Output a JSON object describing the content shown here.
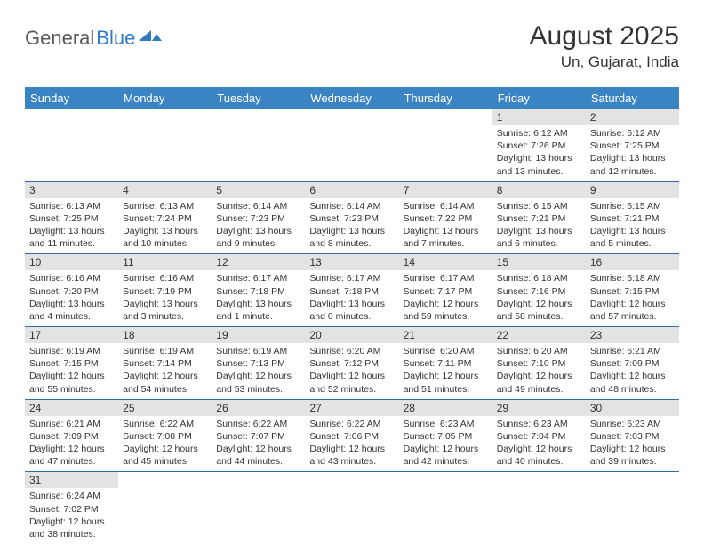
{
  "logo": {
    "text1": "General",
    "text2": "Blue",
    "color1": "#555a5f",
    "color2": "#2f7ac0"
  },
  "title": "August 2025",
  "location": "Un, Gujarat, India",
  "colors": {
    "header_bg": "#3b84c4",
    "header_text": "#ffffff",
    "daynum_bg": "#e3e3e3",
    "border": "#2f6aa8",
    "text": "#333333",
    "background": "#ffffff"
  },
  "weekdays": [
    "Sunday",
    "Monday",
    "Tuesday",
    "Wednesday",
    "Thursday",
    "Friday",
    "Saturday"
  ],
  "weeks": [
    [
      {
        "day": "",
        "lines": []
      },
      {
        "day": "",
        "lines": []
      },
      {
        "day": "",
        "lines": []
      },
      {
        "day": "",
        "lines": []
      },
      {
        "day": "",
        "lines": []
      },
      {
        "day": "1",
        "lines": [
          "Sunrise: 6:12 AM",
          "Sunset: 7:26 PM",
          "Daylight: 13 hours and 13 minutes."
        ]
      },
      {
        "day": "2",
        "lines": [
          "Sunrise: 6:12 AM",
          "Sunset: 7:25 PM",
          "Daylight: 13 hours and 12 minutes."
        ]
      }
    ],
    [
      {
        "day": "3",
        "lines": [
          "Sunrise: 6:13 AM",
          "Sunset: 7:25 PM",
          "Daylight: 13 hours and 11 minutes."
        ]
      },
      {
        "day": "4",
        "lines": [
          "Sunrise: 6:13 AM",
          "Sunset: 7:24 PM",
          "Daylight: 13 hours and 10 minutes."
        ]
      },
      {
        "day": "5",
        "lines": [
          "Sunrise: 6:14 AM",
          "Sunset: 7:23 PM",
          "Daylight: 13 hours and 9 minutes."
        ]
      },
      {
        "day": "6",
        "lines": [
          "Sunrise: 6:14 AM",
          "Sunset: 7:23 PM",
          "Daylight: 13 hours and 8 minutes."
        ]
      },
      {
        "day": "7",
        "lines": [
          "Sunrise: 6:14 AM",
          "Sunset: 7:22 PM",
          "Daylight: 13 hours and 7 minutes."
        ]
      },
      {
        "day": "8",
        "lines": [
          "Sunrise: 6:15 AM",
          "Sunset: 7:21 PM",
          "Daylight: 13 hours and 6 minutes."
        ]
      },
      {
        "day": "9",
        "lines": [
          "Sunrise: 6:15 AM",
          "Sunset: 7:21 PM",
          "Daylight: 13 hours and 5 minutes."
        ]
      }
    ],
    [
      {
        "day": "10",
        "lines": [
          "Sunrise: 6:16 AM",
          "Sunset: 7:20 PM",
          "Daylight: 13 hours and 4 minutes."
        ]
      },
      {
        "day": "11",
        "lines": [
          "Sunrise: 6:16 AM",
          "Sunset: 7:19 PM",
          "Daylight: 13 hours and 3 minutes."
        ]
      },
      {
        "day": "12",
        "lines": [
          "Sunrise: 6:17 AM",
          "Sunset: 7:18 PM",
          "Daylight: 13 hours and 1 minute."
        ]
      },
      {
        "day": "13",
        "lines": [
          "Sunrise: 6:17 AM",
          "Sunset: 7:18 PM",
          "Daylight: 13 hours and 0 minutes."
        ]
      },
      {
        "day": "14",
        "lines": [
          "Sunrise: 6:17 AM",
          "Sunset: 7:17 PM",
          "Daylight: 12 hours and 59 minutes."
        ]
      },
      {
        "day": "15",
        "lines": [
          "Sunrise: 6:18 AM",
          "Sunset: 7:16 PM",
          "Daylight: 12 hours and 58 minutes."
        ]
      },
      {
        "day": "16",
        "lines": [
          "Sunrise: 6:18 AM",
          "Sunset: 7:15 PM",
          "Daylight: 12 hours and 57 minutes."
        ]
      }
    ],
    [
      {
        "day": "17",
        "lines": [
          "Sunrise: 6:19 AM",
          "Sunset: 7:15 PM",
          "Daylight: 12 hours and 55 minutes."
        ]
      },
      {
        "day": "18",
        "lines": [
          "Sunrise: 6:19 AM",
          "Sunset: 7:14 PM",
          "Daylight: 12 hours and 54 minutes."
        ]
      },
      {
        "day": "19",
        "lines": [
          "Sunrise: 6:19 AM",
          "Sunset: 7:13 PM",
          "Daylight: 12 hours and 53 minutes."
        ]
      },
      {
        "day": "20",
        "lines": [
          "Sunrise: 6:20 AM",
          "Sunset: 7:12 PM",
          "Daylight: 12 hours and 52 minutes."
        ]
      },
      {
        "day": "21",
        "lines": [
          "Sunrise: 6:20 AM",
          "Sunset: 7:11 PM",
          "Daylight: 12 hours and 51 minutes."
        ]
      },
      {
        "day": "22",
        "lines": [
          "Sunrise: 6:20 AM",
          "Sunset: 7:10 PM",
          "Daylight: 12 hours and 49 minutes."
        ]
      },
      {
        "day": "23",
        "lines": [
          "Sunrise: 6:21 AM",
          "Sunset: 7:09 PM",
          "Daylight: 12 hours and 48 minutes."
        ]
      }
    ],
    [
      {
        "day": "24",
        "lines": [
          "Sunrise: 6:21 AM",
          "Sunset: 7:09 PM",
          "Daylight: 12 hours and 47 minutes."
        ]
      },
      {
        "day": "25",
        "lines": [
          "Sunrise: 6:22 AM",
          "Sunset: 7:08 PM",
          "Daylight: 12 hours and 45 minutes."
        ]
      },
      {
        "day": "26",
        "lines": [
          "Sunrise: 6:22 AM",
          "Sunset: 7:07 PM",
          "Daylight: 12 hours and 44 minutes."
        ]
      },
      {
        "day": "27",
        "lines": [
          "Sunrise: 6:22 AM",
          "Sunset: 7:06 PM",
          "Daylight: 12 hours and 43 minutes."
        ]
      },
      {
        "day": "28",
        "lines": [
          "Sunrise: 6:23 AM",
          "Sunset: 7:05 PM",
          "Daylight: 12 hours and 42 minutes."
        ]
      },
      {
        "day": "29",
        "lines": [
          "Sunrise: 6:23 AM",
          "Sunset: 7:04 PM",
          "Daylight: 12 hours and 40 minutes."
        ]
      },
      {
        "day": "30",
        "lines": [
          "Sunrise: 6:23 AM",
          "Sunset: 7:03 PM",
          "Daylight: 12 hours and 39 minutes."
        ]
      }
    ],
    [
      {
        "day": "31",
        "lines": [
          "Sunrise: 6:24 AM",
          "Sunset: 7:02 PM",
          "Daylight: 12 hours and 38 minutes."
        ]
      },
      {
        "day": "",
        "lines": []
      },
      {
        "day": "",
        "lines": []
      },
      {
        "day": "",
        "lines": []
      },
      {
        "day": "",
        "lines": []
      },
      {
        "day": "",
        "lines": []
      },
      {
        "day": "",
        "lines": []
      }
    ]
  ]
}
